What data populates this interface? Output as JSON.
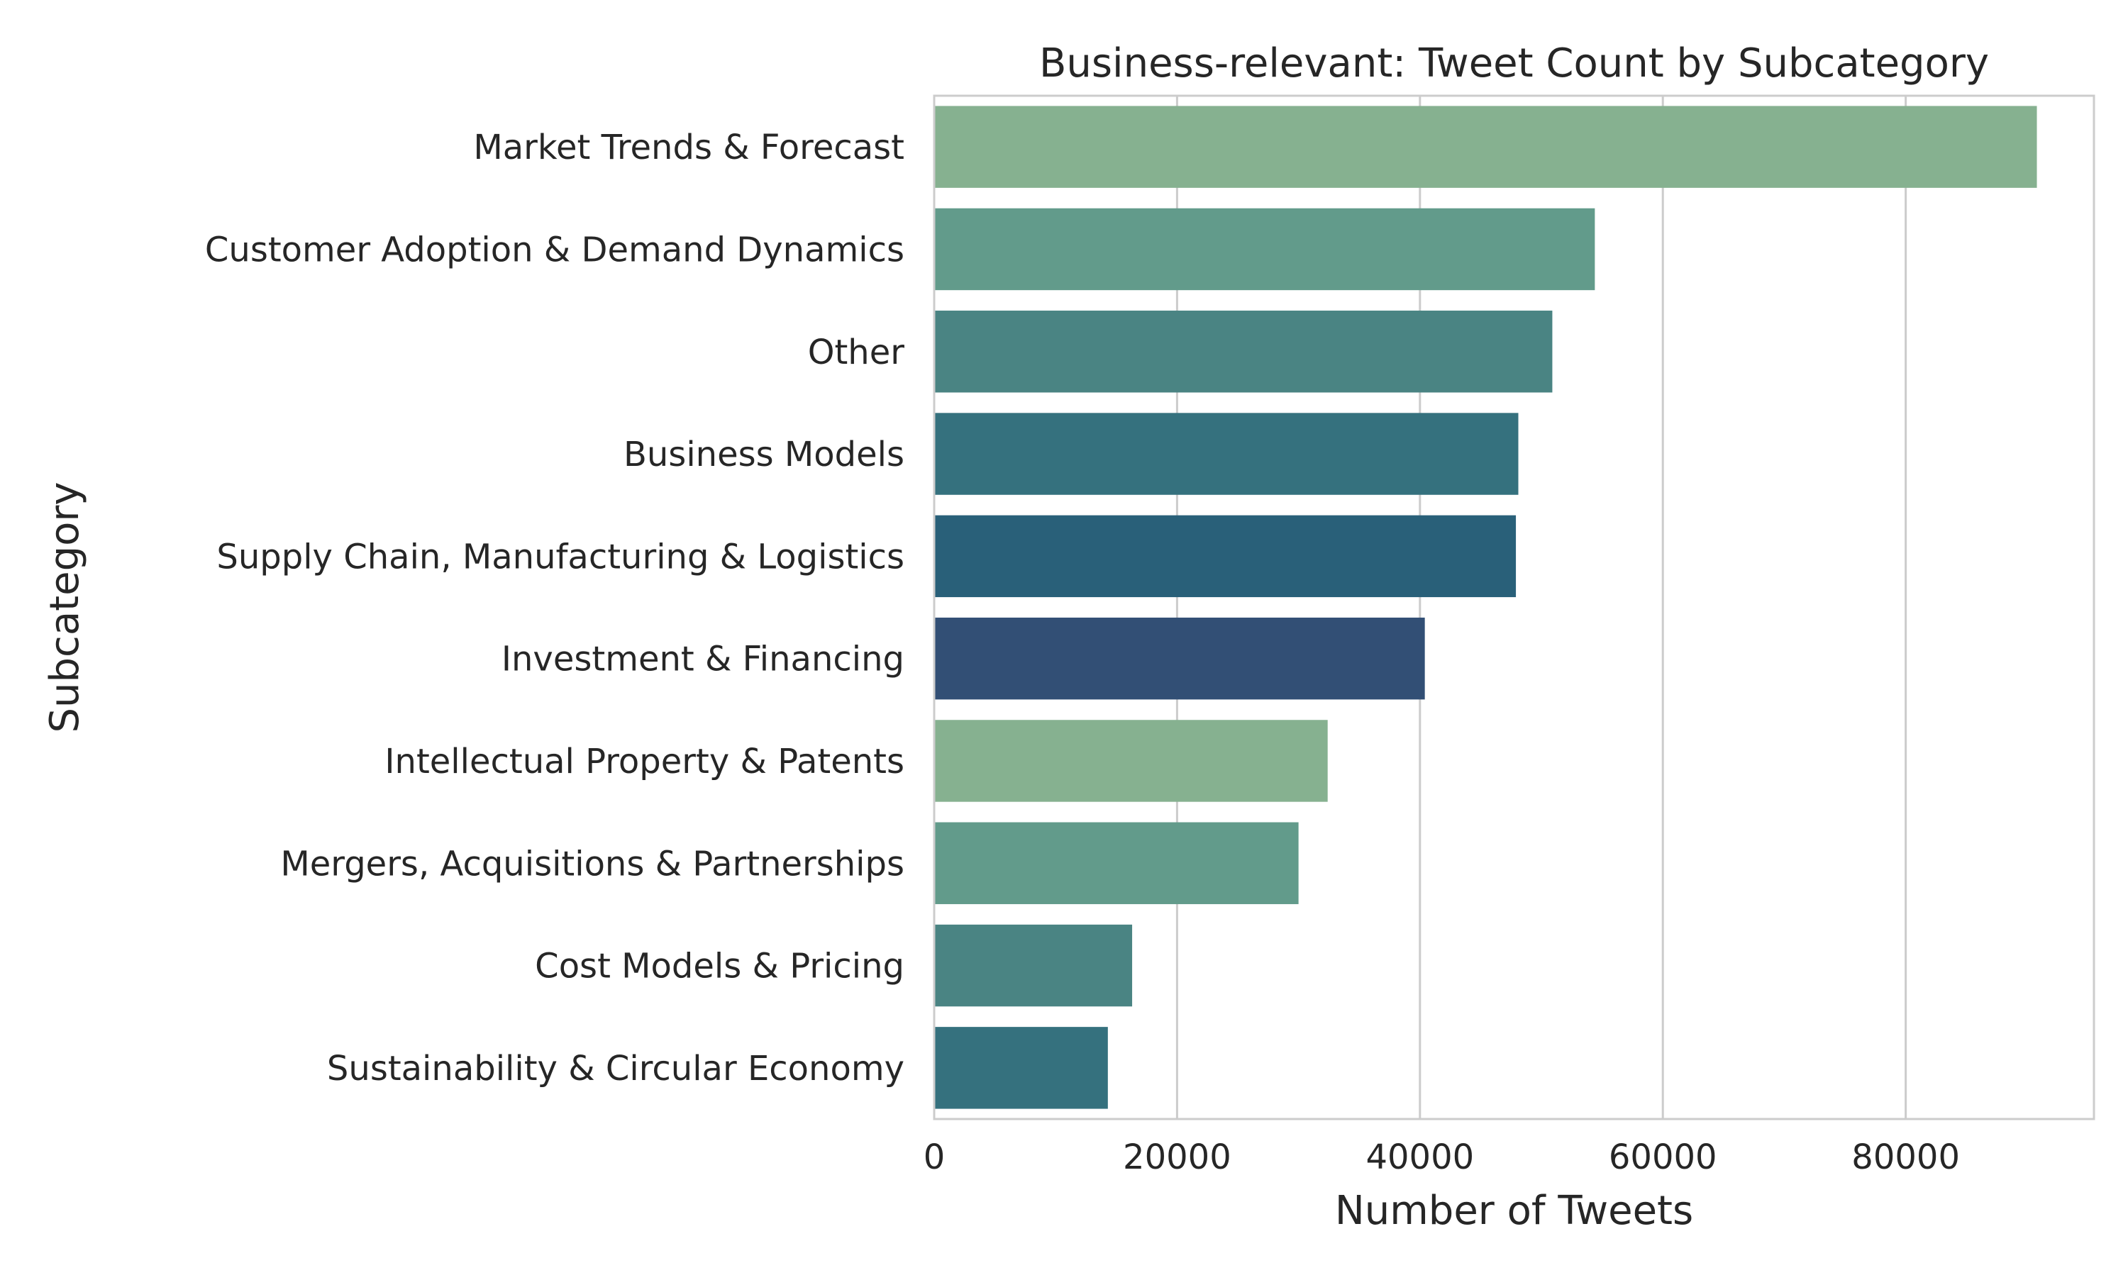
{
  "chart_data": {
    "type": "bar",
    "orientation": "horizontal",
    "title": "Business-relevant: Tweet Count by Subcategory",
    "xlabel": "Number of Tweets",
    "ylabel": "Subcategory",
    "xlim": [
      0,
      95500
    ],
    "x_ticks": [
      0,
      20000,
      40000,
      60000,
      80000
    ],
    "x_tick_labels": [
      "0",
      "20000",
      "40000",
      "60000",
      "80000"
    ],
    "grid": "vertical",
    "categories": [
      "Market Trends & Forecast",
      "Customer Adoption & Demand Dynamics",
      "Other",
      "Business Models",
      "Supply Chain, Manufacturing & Logistics",
      "Investment & Financing",
      "Intellectual Property & Patents",
      "Mergers, Acquisitions & Partnerships",
      "Cost Models & Pricing",
      "Sustainability & Circular Economy"
    ],
    "values": [
      90800,
      54400,
      50900,
      48100,
      47900,
      40400,
      32400,
      30000,
      16300,
      14300
    ],
    "colors": [
      "#86b190",
      "#629b8b",
      "#4a8483",
      "#35717e",
      "#296079",
      "#324f75",
      "#86b190",
      "#629b8b",
      "#4a8483",
      "#35717e"
    ]
  }
}
